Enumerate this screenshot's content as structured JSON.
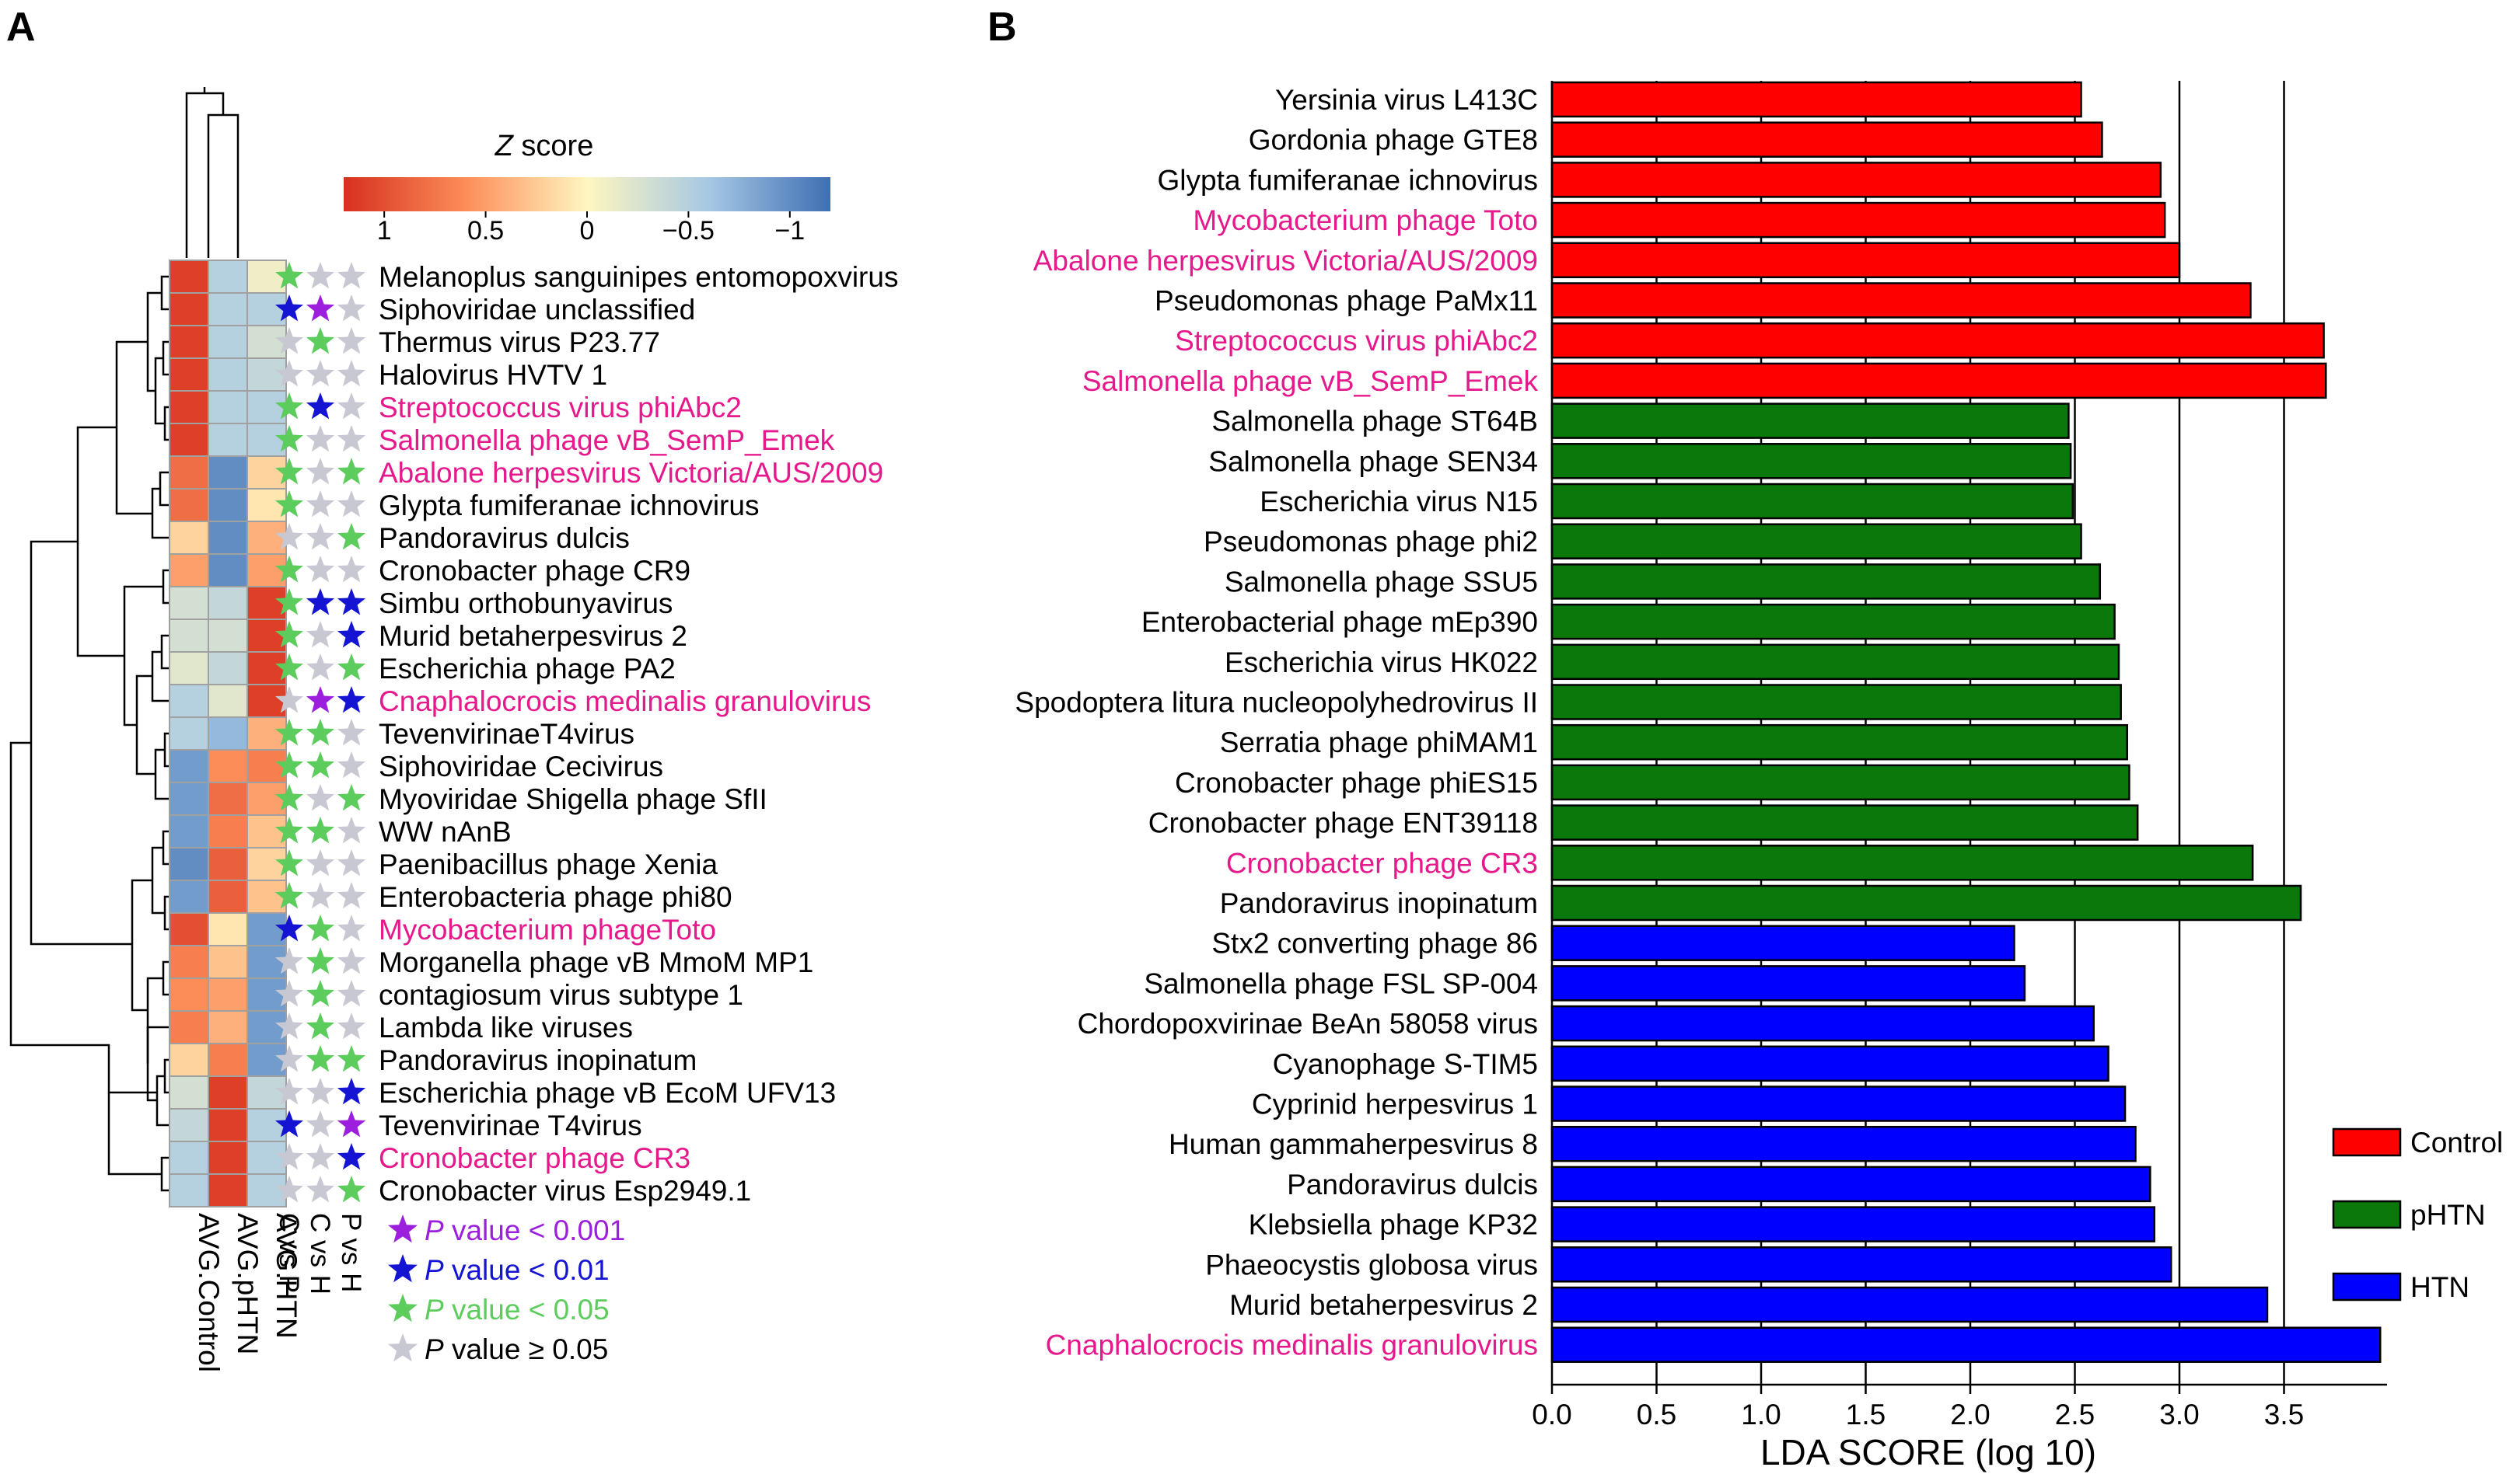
{
  "panels": {
    "a_label": "A",
    "b_label": "B"
  },
  "colors": {
    "magenta": "#e6198c",
    "purple_star": "#9b1fdc",
    "blue_star": "#1414d2",
    "green_star": "#5ccd5c",
    "grey_star": "#c8c8d2",
    "control": "#ff0000",
    "phtn": "#0a780a",
    "htn": "#0000ff",
    "bar_edge": "#000000"
  },
  "heatmap": {
    "colorbar": {
      "title": "Z score",
      "ticks": [
        "1",
        "0.5",
        "0",
        "−0.5",
        "−1"
      ]
    },
    "columns": [
      "AVG.Control",
      "AVG.pHTN",
      "AVG.HTN"
    ],
    "comparisons": [
      "C vs P",
      "C vs H",
      "P vs H"
    ],
    "rows": [
      {
        "name": "Melanoplus sanguinipes entomopoxvirus",
        "highlight": false,
        "z": [
          1.1,
          -0.5,
          -0.1
        ],
        "stars": [
          "g",
          "n",
          "n"
        ]
      },
      {
        "name": "Siphoviridae unclassified",
        "highlight": false,
        "z": [
          1.1,
          -0.5,
          -0.5
        ],
        "stars": [
          "b",
          "p",
          "n"
        ]
      },
      {
        "name": "Thermus virus P23.77",
        "highlight": false,
        "z": [
          1.1,
          -0.5,
          -0.3
        ],
        "stars": [
          "n",
          "g",
          "n"
        ]
      },
      {
        "name": "Halovirus HVTV 1",
        "highlight": false,
        "z": [
          1.1,
          -0.5,
          -0.4
        ],
        "stars": [
          "n",
          "n",
          "n"
        ]
      },
      {
        "name": "Streptococcus virus phiAbc2",
        "highlight": true,
        "z": [
          1.1,
          -0.5,
          -0.5
        ],
        "stars": [
          "g",
          "b",
          "n"
        ]
      },
      {
        "name": "Salmonella phage vB_SemP_Emek",
        "highlight": true,
        "z": [
          1.1,
          -0.5,
          -0.5
        ],
        "stars": [
          "g",
          "n",
          "n"
        ]
      },
      {
        "name": "Abalone herpesvirus Victoria/AUS/2009",
        "highlight": true,
        "z": [
          0.8,
          -1.0,
          0.2
        ],
        "stars": [
          "g",
          "n",
          "g"
        ]
      },
      {
        "name": "Glypta fumiferanae ichnovirus",
        "highlight": false,
        "z": [
          0.8,
          -1.0,
          0.1
        ],
        "stars": [
          "g",
          "n",
          "n"
        ]
      },
      {
        "name": "Pandoravirus dulcis",
        "highlight": false,
        "z": [
          0.2,
          -1.0,
          0.4
        ],
        "stars": [
          "n",
          "n",
          "g"
        ]
      },
      {
        "name": "Cronobacter phage CR9",
        "highlight": false,
        "z": [
          0.5,
          -1.0,
          0.5
        ],
        "stars": [
          "g",
          "n",
          "n"
        ]
      },
      {
        "name": "Simbu orthobunyavirus",
        "highlight": false,
        "z": [
          -0.3,
          -0.4,
          1.1
        ],
        "stars": [
          "g",
          "b",
          "b"
        ]
      },
      {
        "name": "Murid betaherpesvirus 2",
        "highlight": false,
        "z": [
          -0.3,
          -0.3,
          1.1
        ],
        "stars": [
          "g",
          "n",
          "b"
        ]
      },
      {
        "name": "Escherichia phage PA2",
        "highlight": false,
        "z": [
          -0.2,
          -0.4,
          1.1
        ],
        "stars": [
          "g",
          "n",
          "g"
        ]
      },
      {
        "name": "Cnaphalocrocis medinalis granulovirus",
        "highlight": true,
        "z": [
          -0.5,
          -0.2,
          1.1
        ],
        "stars": [
          "n",
          "p",
          "b"
        ]
      },
      {
        "name": "TevenvirinaeT4virus",
        "highlight": false,
        "z": [
          -0.5,
          -0.7,
          0.4
        ],
        "stars": [
          "g",
          "g",
          "n"
        ]
      },
      {
        "name": "Siphoviridae Cecivirus",
        "highlight": false,
        "z": [
          -0.9,
          0.6,
          0.7
        ],
        "stars": [
          "g",
          "g",
          "n"
        ]
      },
      {
        "name": "Myoviridae Shigella phage SfII",
        "highlight": false,
        "z": [
          -0.9,
          0.8,
          0.5
        ],
        "stars": [
          "g",
          "n",
          "g"
        ]
      },
      {
        "name": "WW nAnB",
        "highlight": false,
        "z": [
          -0.9,
          0.7,
          0.3
        ],
        "stars": [
          "g",
          "g",
          "n"
        ]
      },
      {
        "name": "Paenibacillus phage Xenia",
        "highlight": false,
        "z": [
          -1.0,
          0.9,
          0.2
        ],
        "stars": [
          "g",
          "n",
          "n"
        ]
      },
      {
        "name": "Enterobacteria phage phi80",
        "highlight": false,
        "z": [
          -0.9,
          0.9,
          0.3
        ],
        "stars": [
          "g",
          "n",
          "n"
        ]
      },
      {
        "name": "Mycobacterium phageToto",
        "highlight": true,
        "z": [
          1.0,
          0.1,
          -0.9
        ],
        "stars": [
          "b",
          "g",
          "n"
        ]
      },
      {
        "name": "Morganella phage vB MmoM MP1",
        "highlight": false,
        "z": [
          0.7,
          0.3,
          -0.9
        ],
        "stars": [
          "n",
          "g",
          "n"
        ]
      },
      {
        "name": "contagiosum virus subtype 1",
        "highlight": false,
        "z": [
          0.6,
          0.5,
          -0.9
        ],
        "stars": [
          "n",
          "g",
          "n"
        ]
      },
      {
        "name": "Lambda like viruses",
        "highlight": false,
        "z": [
          0.7,
          0.4,
          -0.9
        ],
        "stars": [
          "n",
          "g",
          "n"
        ]
      },
      {
        "name": "Pandoravirus inopinatum",
        "highlight": false,
        "z": [
          0.2,
          0.7,
          -0.9
        ],
        "stars": [
          "n",
          "g",
          "g"
        ]
      },
      {
        "name": "Escherichia phage vB EcoM UFV13",
        "highlight": false,
        "z": [
          -0.3,
          1.1,
          -0.4
        ],
        "stars": [
          "n",
          "n",
          "b"
        ]
      },
      {
        "name": "Tevenvirinae T4virus",
        "highlight": false,
        "z": [
          -0.4,
          1.1,
          -0.5
        ],
        "stars": [
          "b",
          "n",
          "p"
        ]
      },
      {
        "name": "Cronobacter phage CR3",
        "highlight": true,
        "z": [
          -0.5,
          1.1,
          -0.5
        ],
        "stars": [
          "n",
          "n",
          "b"
        ]
      },
      {
        "name": "Cronobacter virus Esp2949.1",
        "highlight": false,
        "z": [
          -0.5,
          1.1,
          -0.5
        ],
        "stars": [
          "n",
          "n",
          "g"
        ]
      }
    ],
    "pvalue_legend": [
      {
        "star": "p",
        "prefix": "P",
        "text": " value < 0.001"
      },
      {
        "star": "b",
        "prefix": "P",
        "text": " value < 0.01"
      },
      {
        "star": "g",
        "prefix": "P",
        "text": " value < 0.05"
      },
      {
        "star": "n",
        "prefix": "P",
        "text": " value ≥ 0.05"
      }
    ]
  },
  "chart_data": {
    "type": "bar",
    "orientation": "horizontal",
    "xlabel": "LDA SCORE (log 10)",
    "xlim": [
      0,
      4.0
    ],
    "xticks": [
      "0.0",
      "0.5",
      "1.0",
      "1.5",
      "2.0",
      "2.5",
      "3.0",
      "3.5"
    ],
    "gridlines": [
      0.5,
      1.0,
      1.5,
      2.0,
      2.5,
      3.0,
      3.5
    ],
    "legend": {
      "position": "right",
      "entries": [
        {
          "label": "Control",
          "group": "control"
        },
        {
          "label": "pHTN",
          "group": "phtn"
        },
        {
          "label": "HTN",
          "group": "htn"
        }
      ]
    },
    "bars": [
      {
        "label": "Yersinia virus L413C",
        "value": 2.53,
        "group": "control",
        "highlight": false
      },
      {
        "label": "Gordonia phage GTE8",
        "value": 2.63,
        "group": "control",
        "highlight": false
      },
      {
        "label": "Glypta fumiferanae ichnovirus",
        "value": 2.91,
        "group": "control",
        "highlight": false
      },
      {
        "label": "Mycobacterium phage Toto",
        "value": 2.93,
        "group": "control",
        "highlight": true
      },
      {
        "label": "Abalone herpesvirus Victoria/AUS/2009",
        "value": 3.0,
        "group": "control",
        "highlight": true
      },
      {
        "label": "Pseudomonas phage PaMx11",
        "value": 3.34,
        "group": "control",
        "highlight": false
      },
      {
        "label": "Streptococcus virus phiAbc2",
        "value": 3.69,
        "group": "control",
        "highlight": true
      },
      {
        "label": "Salmonella phage vB_SemP_Emek",
        "value": 3.7,
        "group": "control",
        "highlight": true
      },
      {
        "label": "Salmonella phage ST64B",
        "value": 2.47,
        "group": "phtn",
        "highlight": false
      },
      {
        "label": "Salmonella phage SEN34",
        "value": 2.48,
        "group": "phtn",
        "highlight": false
      },
      {
        "label": "Escherichia virus N15",
        "value": 2.49,
        "group": "phtn",
        "highlight": false
      },
      {
        "label": "Pseudomonas phage phi2",
        "value": 2.53,
        "group": "phtn",
        "highlight": false
      },
      {
        "label": "Salmonella phage SSU5",
        "value": 2.62,
        "group": "phtn",
        "highlight": false
      },
      {
        "label": "Enterobacterial phage mEp390",
        "value": 2.69,
        "group": "phtn",
        "highlight": false
      },
      {
        "label": "Escherichia virus HK022",
        "value": 2.71,
        "group": "phtn",
        "highlight": false
      },
      {
        "label": "Spodoptera litura nucleopolyhedrovirus II",
        "value": 2.72,
        "group": "phtn",
        "highlight": false
      },
      {
        "label": "Serratia phage phiMAM1",
        "value": 2.75,
        "group": "phtn",
        "highlight": false
      },
      {
        "label": "Cronobacter phage phiES15",
        "value": 2.76,
        "group": "phtn",
        "highlight": false
      },
      {
        "label": "Cronobacter phage ENT39118",
        "value": 2.8,
        "group": "phtn",
        "highlight": false
      },
      {
        "label": "Cronobacter phage CR3",
        "value": 3.35,
        "group": "phtn",
        "highlight": true
      },
      {
        "label": "Pandoravirus inopinatum",
        "value": 3.58,
        "group": "phtn",
        "highlight": false
      },
      {
        "label": "Stx2 converting phage 86",
        "value": 2.21,
        "group": "htn",
        "highlight": false
      },
      {
        "label": "Salmonella phage FSL SP-004",
        "value": 2.26,
        "group": "htn",
        "highlight": false
      },
      {
        "label": "Chordopoxvirinae BeAn 58058 virus",
        "value": 2.59,
        "group": "htn",
        "highlight": false
      },
      {
        "label": "Cyanophage S-TIM5",
        "value": 2.66,
        "group": "htn",
        "highlight": false
      },
      {
        "label": "Cyprinid herpesvirus 1",
        "value": 2.74,
        "group": "htn",
        "highlight": false
      },
      {
        "label": "Human gammaherpesvirus 8",
        "value": 2.79,
        "group": "htn",
        "highlight": false
      },
      {
        "label": "Pandoravirus dulcis",
        "value": 2.86,
        "group": "htn",
        "highlight": false
      },
      {
        "label": "Klebsiella phage KP32",
        "value": 2.88,
        "group": "htn",
        "highlight": false
      },
      {
        "label": "Phaeocystis globosa virus",
        "value": 2.96,
        "group": "htn",
        "highlight": false
      },
      {
        "label": "Murid betaherpesvirus 2",
        "value": 3.42,
        "group": "htn",
        "highlight": false
      },
      {
        "label": "Cnaphalocrocis medinalis granulovirus",
        "value": 3.96,
        "group": "htn",
        "highlight": true
      }
    ]
  }
}
